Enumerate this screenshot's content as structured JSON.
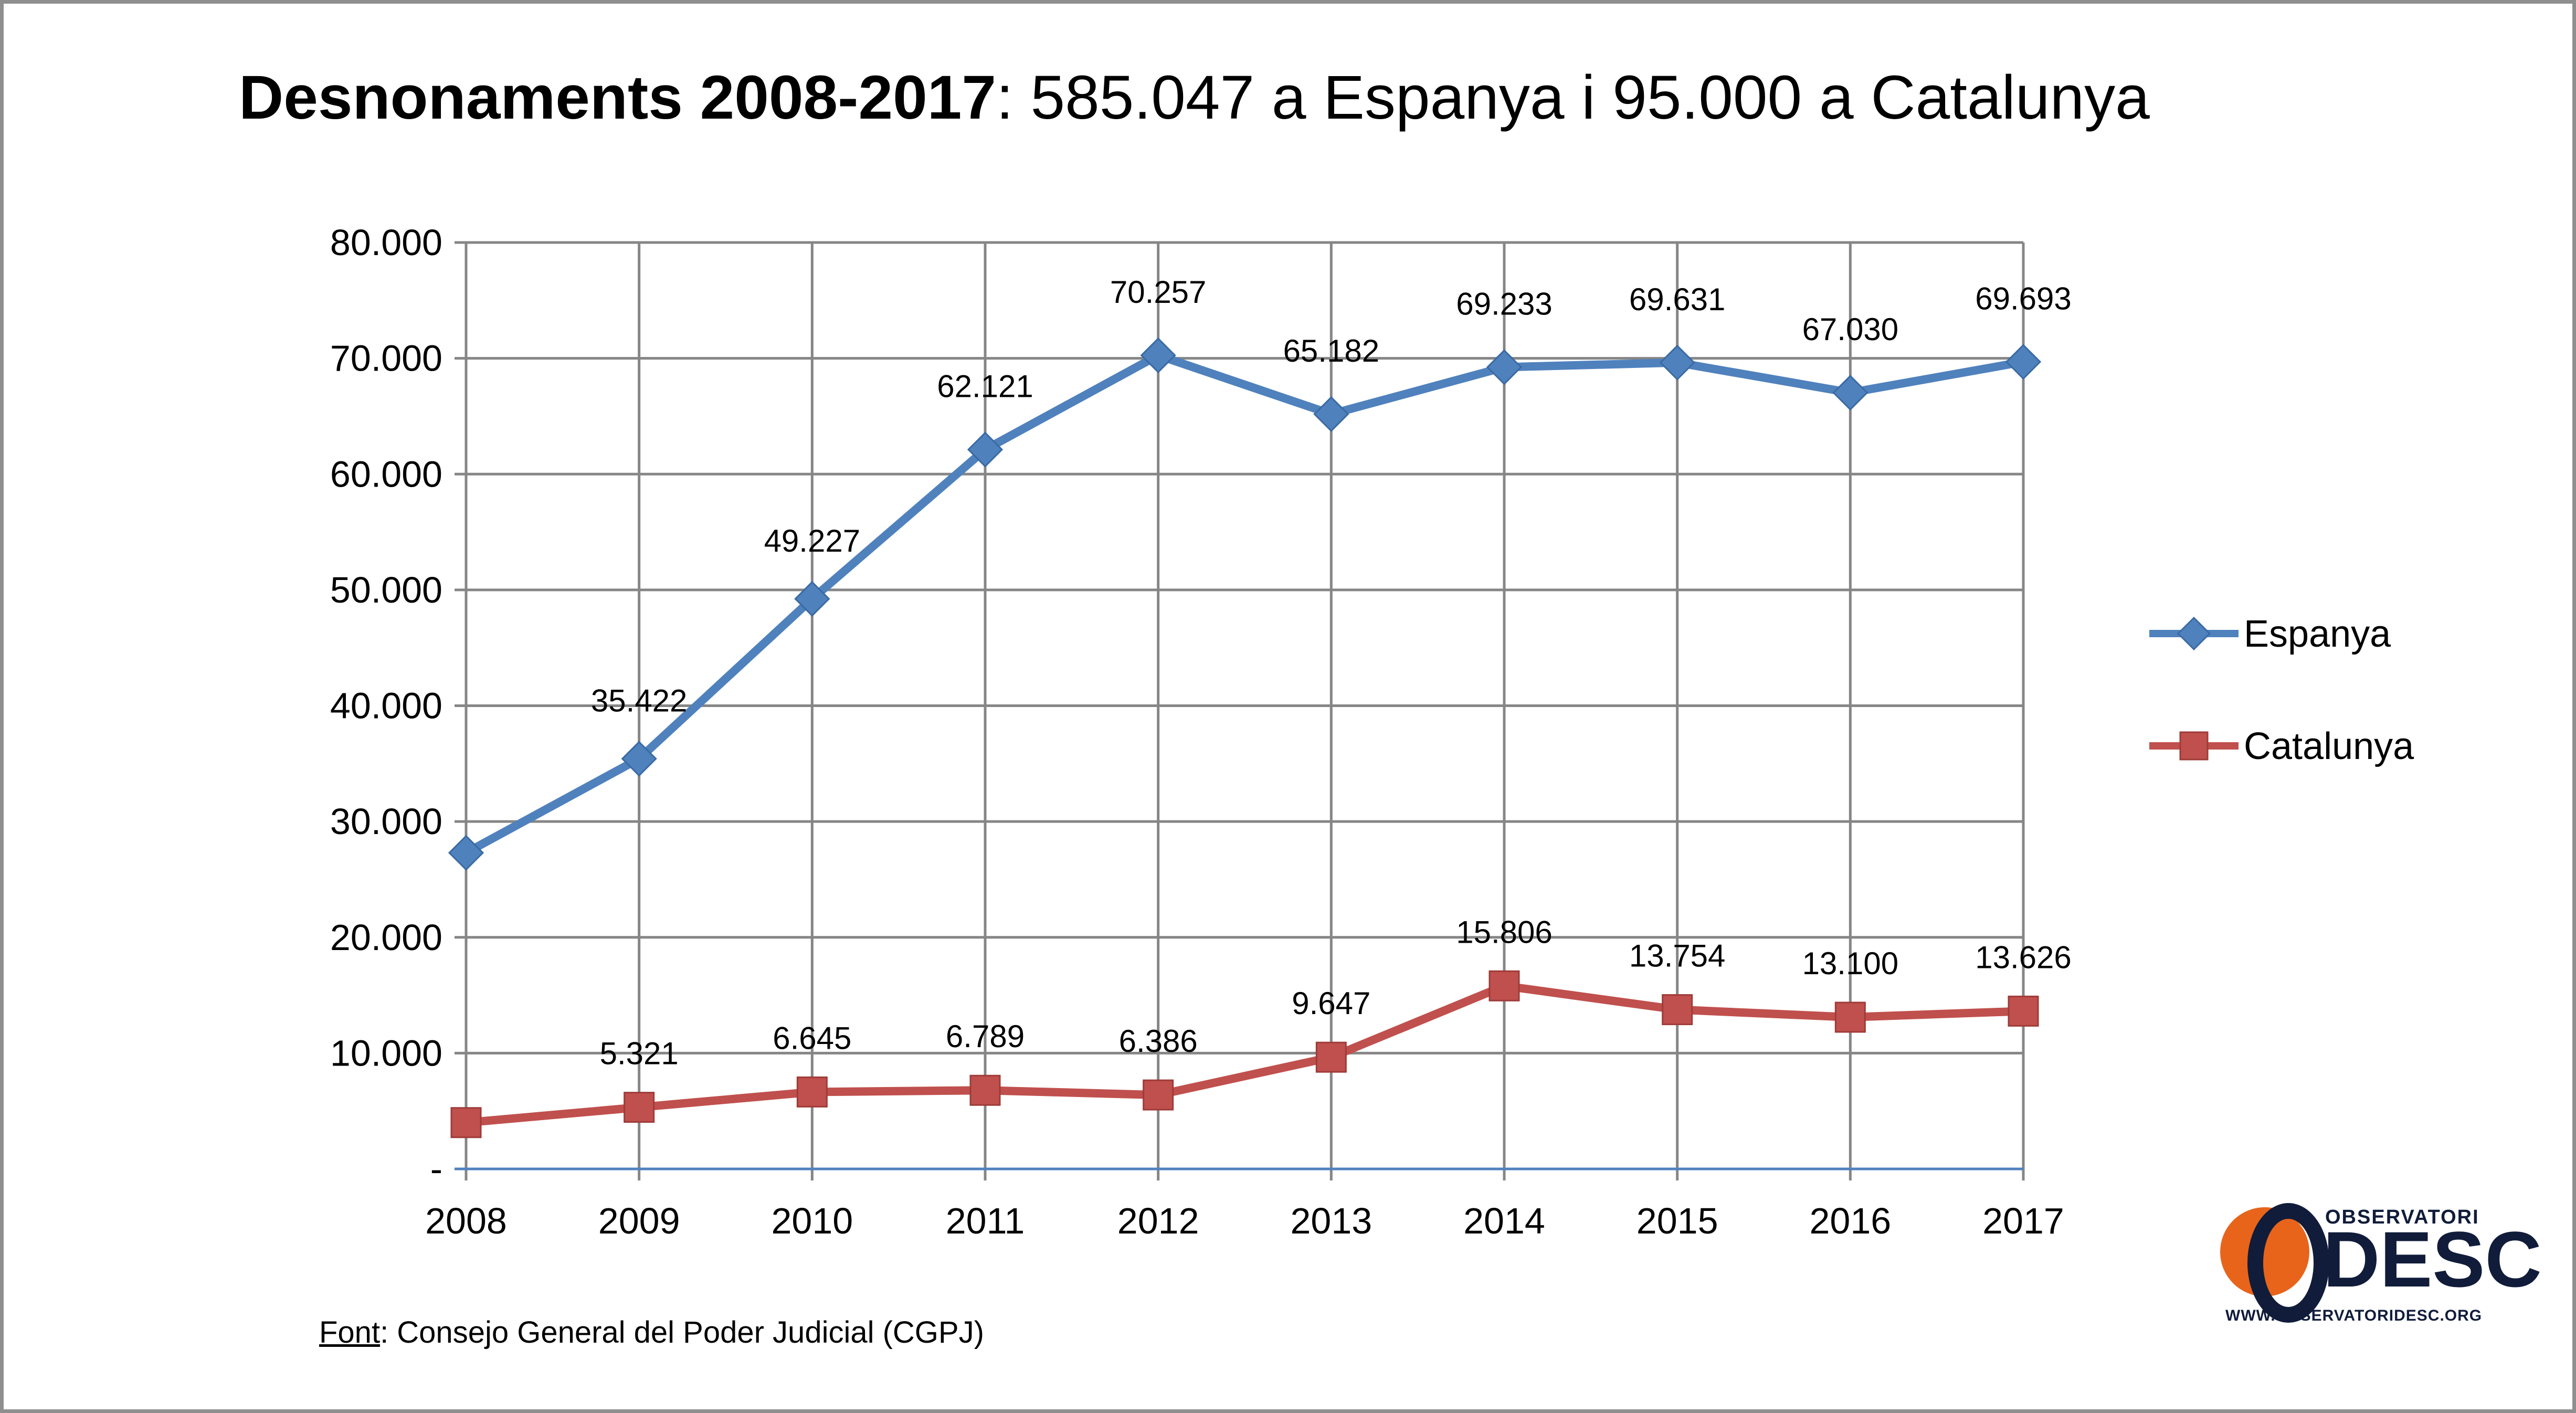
{
  "title": {
    "bold": "Desnonaments 2008-2017",
    "rest": ": 585.047 a Espanya i 95.000 a Catalunya"
  },
  "source": {
    "label": "Font",
    "rest": ": Consejo General del Poder Judicial (CGPJ)"
  },
  "logo": {
    "top": "OBSERVATORI",
    "main": "DESC",
    "url": "WWW.OBSERVATORIDESC.ORG"
  },
  "chart_data": {
    "type": "line",
    "categories": [
      "2008",
      "2009",
      "2010",
      "2011",
      "2012",
      "2013",
      "2014",
      "2015",
      "2016",
      "2017"
    ],
    "ylim": [
      0,
      80000
    ],
    "yticks": [
      {
        "value": 80000,
        "label": "80.000"
      },
      {
        "value": 70000,
        "label": "70.000"
      },
      {
        "value": 60000,
        "label": "60.000"
      },
      {
        "value": 50000,
        "label": "50.000"
      },
      {
        "value": 40000,
        "label": "40.000"
      },
      {
        "value": 30000,
        "label": "30.000"
      },
      {
        "value": 20000,
        "label": "20.000"
      },
      {
        "value": 10000,
        "label": "10.000"
      },
      {
        "value": 0,
        "label": "-"
      }
    ],
    "grid": true,
    "legend_position": "right",
    "series": [
      {
        "name": "Espanya",
        "color": "#4f81bd",
        "marker": "diamond",
        "values": [
          27300,
          35422,
          49227,
          62121,
          70257,
          65182,
          69233,
          69631,
          67030,
          69693
        ],
        "labels": [
          "",
          "35.422",
          "49.227",
          "62.121",
          "70.257",
          "65.182",
          "69.233",
          "69.631",
          "67.030",
          "69.693"
        ]
      },
      {
        "name": "Catalunya",
        "color": "#c0504d",
        "marker": "square",
        "values": [
          4000,
          5321,
          6645,
          6789,
          6386,
          9647,
          15806,
          13754,
          13100,
          13626
        ],
        "labels": [
          "",
          "5.321",
          "6.645",
          "6.789",
          "6.386",
          "9.647",
          "15.806",
          "13.754",
          "13.100",
          "13.626"
        ]
      }
    ]
  }
}
